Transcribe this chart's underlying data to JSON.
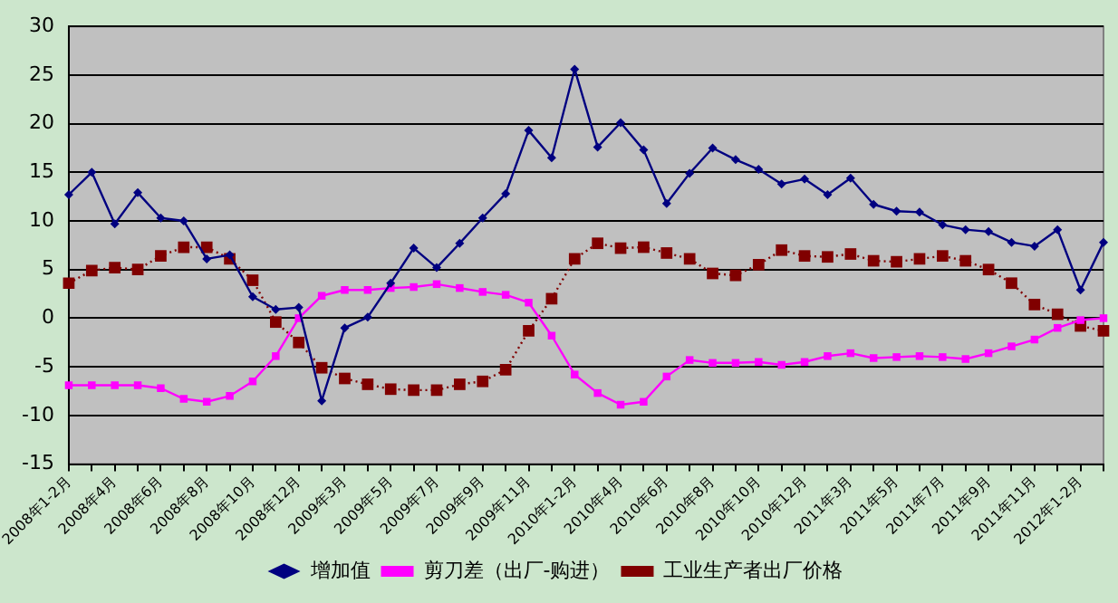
{
  "chart_data": {
    "type": "line",
    "categories": [
      "2008年1-2月",
      null,
      "2008年4月",
      null,
      "2008年6月",
      null,
      "2008年8月",
      null,
      "2008年10月",
      null,
      "2008年12月",
      null,
      "2009年3月",
      null,
      "2009年5月",
      null,
      "2009年7月",
      null,
      "2009年9月",
      null,
      "2009年11月",
      null,
      "2010年1-2月",
      null,
      "2010年4月",
      null,
      "2010年6月",
      null,
      "2010年8月",
      null,
      "2010年10月",
      null,
      "2010年12月",
      null,
      "2011年3月",
      null,
      "2011年5月",
      null,
      "2011年7月",
      null,
      "2011年9月",
      null,
      "2011年11月",
      null,
      "2012年1-2月",
      null
    ],
    "series": [
      {
        "name": "增加值",
        "color": "#000080",
        "marker": "diamond",
        "line_style": "solid",
        "values": [
          12.7,
          15.0,
          9.7,
          12.9,
          10.3,
          10.0,
          6.1,
          6.5,
          2.2,
          0.9,
          1.1,
          -8.5,
          -1.0,
          0.1,
          3.6,
          7.2,
          5.2,
          7.7,
          10.3,
          12.8,
          19.3,
          16.5,
          25.6,
          17.6,
          20.1,
          17.3,
          11.8,
          14.9,
          17.5,
          16.3,
          15.3,
          13.8,
          14.3,
          12.7,
          14.4,
          11.7,
          11.0,
          10.9,
          9.6,
          9.1,
          8.9,
          7.8,
          7.4,
          9.1,
          2.9,
          7.8
        ]
      },
      {
        "name": "剪刀差（出厂-购进）",
        "color": "#ff00ff",
        "marker": "square",
        "line_style": "solid",
        "values": [
          -6.9,
          -6.9,
          -6.9,
          -6.9,
          -7.2,
          -8.3,
          -8.6,
          -8.0,
          -6.5,
          -3.9,
          0.0,
          2.3,
          2.9,
          2.9,
          3.1,
          3.2,
          3.5,
          3.1,
          2.7,
          2.4,
          1.6,
          -1.8,
          -5.8,
          -7.7,
          -8.9,
          -8.6,
          -6.0,
          -4.3,
          -4.6,
          -4.6,
          -4.5,
          -4.8,
          -4.5,
          -3.9,
          -3.6,
          -4.1,
          -4.0,
          -3.9,
          -4.0,
          -4.2,
          -3.6,
          -2.9,
          -2.2,
          -1.0,
          -0.2,
          0.0
        ]
      },
      {
        "name": "工业生产者出厂价格",
        "color": "#800000",
        "marker": "square",
        "line_style": "dotted",
        "values": [
          3.6,
          4.9,
          5.2,
          5.0,
          6.4,
          7.3,
          7.3,
          6.1,
          3.9,
          -0.4,
          -2.5,
          -5.1,
          -6.2,
          -6.8,
          -7.3,
          -7.4,
          -7.4,
          -6.8,
          -6.5,
          -5.3,
          -1.3,
          2.0,
          6.1,
          7.7,
          7.2,
          7.3,
          6.7,
          6.1,
          4.6,
          4.4,
          5.5,
          7.0,
          6.4,
          6.3,
          6.6,
          5.9,
          5.8,
          6.1,
          6.4,
          5.9,
          5.0,
          3.6,
          1.4,
          0.4,
          -0.8,
          -1.3
        ]
      }
    ],
    "ylim": [
      -15,
      30
    ],
    "yticks": [
      -15,
      -10,
      -5,
      0,
      5,
      10,
      15,
      20,
      25,
      30
    ],
    "grid": "y",
    "legend": "bottom"
  }
}
